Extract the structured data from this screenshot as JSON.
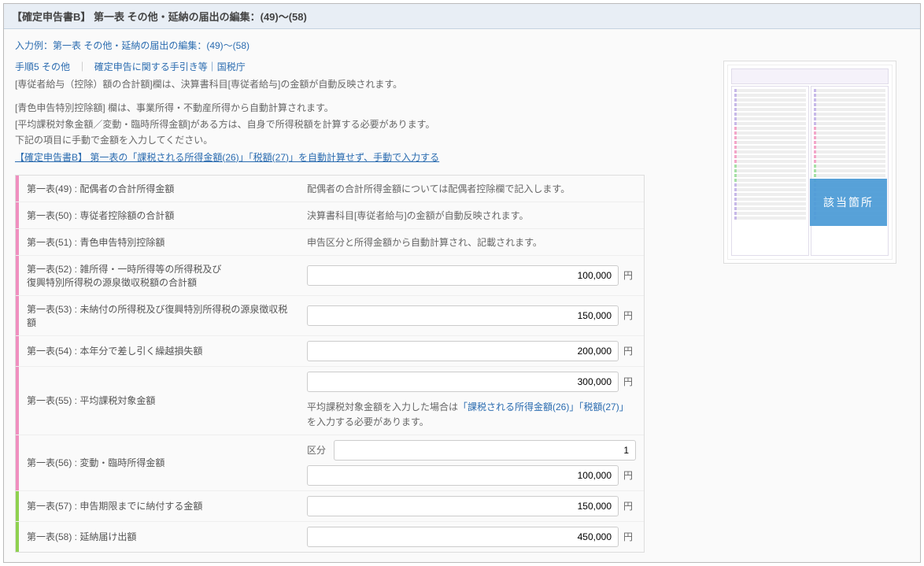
{
  "header": {
    "title": "【確定申告書B】 第一表 その他・延納の届出の編集：(49)〜(58)"
  },
  "example": {
    "label": "入力例：第一表 その他・延納の届出の編集：(49)〜(58)"
  },
  "links": {
    "step": "手順5 その他",
    "guide": "確定申告に関する手引き等｜国税庁"
  },
  "desc": {
    "l1": "[専従者給与（控除）額の合計額]欄は、決算書科目[専従者給与]の金額が自動反映されます。",
    "l2": "[青色申告特別控除額]  欄は、事業所得・不動産所得から自動計算されます。",
    "l3": "[平均課税対象金額／変動・臨時所得金額]がある方は、自身で所得税額を計算する必要があります。",
    "l4": "下記の項目に手動で金額を入力してください。",
    "link": "【確定申告書B】 第一表の「課税される所得金額(26)」「税額(27)」を自動計算せず、手動で入力する"
  },
  "rows": {
    "r49": {
      "label": "第一表(49) : 配偶者の合計所得金額",
      "text": "配偶者の合計所得金額については配偶者控除欄で記入します。"
    },
    "r50": {
      "label": "第一表(50) : 専従者控除額の合計額",
      "text": "決算書科目[専従者給与]の金額が自動反映されます。"
    },
    "r51": {
      "label": "第一表(51) : 青色申告特別控除額",
      "text": "申告区分と所得金額から自動計算され、記載されます。"
    },
    "r52": {
      "label": "第一表(52) : 雑所得・一時所得等の所得税及び\n復興特別所得税の源泉徴収税額の合計額",
      "value": "100,000"
    },
    "r53": {
      "label": "第一表(53) : 未納付の所得税及び復興特別所得税の源泉徴収税額",
      "value": "150,000"
    },
    "r54": {
      "label": "第一表(54) : 本年分で差し引く繰越損失額",
      "value": "200,000"
    },
    "r55": {
      "label": "第一表(55) : 平均課税対象金額",
      "value": "300,000",
      "note_pre": "平均課税対象金額を入力した場合は",
      "note_link": "「課税される所得金額(26)」「税額(27)」",
      "note_post": "を入力する必要があります。"
    },
    "r56": {
      "label": "第一表(56) : 変動・臨時所得金額",
      "kubun_label": "区分",
      "kubun": "1",
      "value": "100,000"
    },
    "r57": {
      "label": "第一表(57) : 申告期限までに納付する金額",
      "value": "150,000"
    },
    "r58": {
      "label": "第一表(58) : 延納届け出額",
      "value": "450,000"
    }
  },
  "unit": "円",
  "thumb": {
    "overlay": "該当箇所"
  }
}
